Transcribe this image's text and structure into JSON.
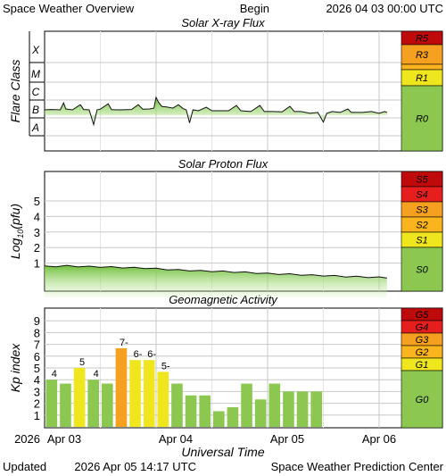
{
  "header": {
    "title": "Space Weather Overview",
    "begin_label": "Begin",
    "begin_value": "2026 04 03 00:00 UTC"
  },
  "footer": {
    "updated_label": "Updated",
    "updated_value": "2026 Apr 05 14:17 UTC",
    "credit": "Space Weather Prediction Center"
  },
  "colors": {
    "green": "#8cc850",
    "yellow": "#f0e61e",
    "orange": "#f5a01e",
    "light_orange": "#fab41e",
    "red": "#e61e1e",
    "dark_red": "#be0a0a",
    "grid": "#c8c8c8"
  },
  "chart_data": [
    {
      "type": "area",
      "title": "Solar X-ray Flux",
      "ylabel": "Flare Class",
      "yscale": "log",
      "y_ticks": [
        "A",
        "B",
        "C",
        "M",
        "X"
      ],
      "scale_labels": [
        "R5",
        "R3",
        "R1",
        "R0"
      ],
      "x_ticks": [
        "Apr 03",
        "Apr 04",
        "Apr 05",
        "Apr 06"
      ],
      "x_range_days": [
        0,
        3.2
      ],
      "grid": true,
      "series": [
        {
          "values": [
            [
              0.0,
              -6.0
            ],
            [
              0.05,
              -5.98
            ],
            [
              0.1,
              -5.99
            ],
            [
              0.14,
              -6.0
            ],
            [
              0.17,
              -5.6
            ],
            [
              0.19,
              -5.95
            ],
            [
              0.25,
              -6.0
            ],
            [
              0.32,
              -5.7
            ],
            [
              0.35,
              -5.98
            ],
            [
              0.4,
              -6.0
            ],
            [
              0.44,
              -6.85
            ],
            [
              0.47,
              -6.0
            ],
            [
              0.5,
              -5.96
            ],
            [
              0.57,
              -5.65
            ],
            [
              0.6,
              -5.99
            ],
            [
              0.68,
              -6.0
            ],
            [
              0.78,
              -5.98
            ],
            [
              0.84,
              -5.7
            ],
            [
              0.88,
              -5.96
            ],
            [
              0.94,
              -5.95
            ],
            [
              0.98,
              -5.9
            ],
            [
              1.0,
              -5.28
            ],
            [
              1.02,
              -5.55
            ],
            [
              1.05,
              -5.8
            ],
            [
              1.1,
              -5.84
            ],
            [
              1.15,
              -5.9
            ],
            [
              1.2,
              -5.7
            ],
            [
              1.24,
              -5.92
            ],
            [
              1.27,
              -6.0
            ],
            [
              1.3,
              -6.75
            ],
            [
              1.33,
              -6.0
            ],
            [
              1.38,
              -6.05
            ],
            [
              1.45,
              -5.85
            ],
            [
              1.5,
              -6.05
            ],
            [
              1.58,
              -6.05
            ],
            [
              1.65,
              -6.05
            ],
            [
              1.72,
              -5.75
            ],
            [
              1.76,
              -6.05
            ],
            [
              1.85,
              -6.1
            ],
            [
              1.93,
              -5.75
            ],
            [
              1.97,
              -6.1
            ],
            [
              2.05,
              -6.1
            ],
            [
              2.13,
              -6.12
            ],
            [
              2.2,
              -5.8
            ],
            [
              2.24,
              -6.1
            ],
            [
              2.3,
              -6.1
            ],
            [
              2.38,
              -6.2
            ],
            [
              2.45,
              -6.15
            ],
            [
              2.5,
              -6.7
            ],
            [
              2.53,
              -6.2
            ],
            [
              2.58,
              -6.1
            ],
            [
              2.65,
              -6.15
            ],
            [
              2.72,
              -5.95
            ],
            [
              2.75,
              -6.15
            ],
            [
              2.85,
              -6.15
            ],
            [
              2.93,
              -6.1
            ],
            [
              3.0,
              -6.2
            ],
            [
              3.05,
              -6.1
            ],
            [
              3.07,
              -6.15
            ]
          ]
        }
      ]
    },
    {
      "type": "area",
      "title": "Solar Proton Flux",
      "ylabel": "Log10(pfu)",
      "ylabel_base": "Log",
      "ylabel_sub": "10",
      "ylabel_unit": "(pfu)",
      "y_ticks": [
        1,
        2,
        3,
        4,
        5
      ],
      "scale_labels": [
        "S5",
        "S4",
        "S3",
        "S2",
        "S1",
        "S0"
      ],
      "x_range_days": [
        0,
        3.2
      ],
      "grid": true,
      "series": [
        {
          "values": [
            [
              0.0,
              0.78
            ],
            [
              0.1,
              0.8
            ],
            [
              0.2,
              0.82
            ],
            [
              0.3,
              0.79
            ],
            [
              0.4,
              0.77
            ],
            [
              0.5,
              0.76
            ],
            [
              0.6,
              0.74
            ],
            [
              0.7,
              0.72
            ],
            [
              0.8,
              0.7
            ],
            [
              0.9,
              0.68
            ],
            [
              1.0,
              0.64
            ],
            [
              1.1,
              0.6
            ],
            [
              1.2,
              0.56
            ],
            [
              1.3,
              0.53
            ],
            [
              1.4,
              0.5
            ],
            [
              1.5,
              0.48
            ],
            [
              1.6,
              0.46
            ],
            [
              1.7,
              0.43
            ],
            [
              1.8,
              0.4
            ],
            [
              1.9,
              0.36
            ],
            [
              2.0,
              0.33
            ],
            [
              2.1,
              0.3
            ],
            [
              2.2,
              0.28
            ],
            [
              2.3,
              0.25
            ],
            [
              2.4,
              0.22
            ],
            [
              2.5,
              0.2
            ],
            [
              2.6,
              0.17
            ],
            [
              2.7,
              0.14
            ],
            [
              2.8,
              0.12
            ],
            [
              2.9,
              0.1
            ],
            [
              3.0,
              0.08
            ],
            [
              3.07,
              0.07
            ]
          ]
        }
      ]
    },
    {
      "type": "bar",
      "title": "Geomagnetic Activity",
      "ylabel": "Kp index",
      "xlabel": "Universal Time",
      "x_start_label": "2026",
      "y_ticks": [
        1,
        2,
        3,
        4,
        5,
        6,
        7,
        8,
        9
      ],
      "ylim": [
        0,
        10
      ],
      "scale_labels": [
        "G5",
        "G4",
        "G3",
        "G2",
        "G1",
        "G0"
      ],
      "x_ticks": [
        "Apr 03",
        "Apr 04",
        "Apr 05",
        "Apr 06"
      ],
      "bar_interval_hours": 3,
      "values": [
        4.0,
        3.67,
        5.0,
        4.0,
        3.67,
        6.67,
        5.67,
        5.67,
        4.67,
        3.67,
        2.67,
        2.67,
        1.33,
        1.67,
        3.67,
        2.33,
        3.67,
        3.0,
        3.0,
        3.0
      ],
      "value_labels": [
        "4",
        "",
        "5",
        "4",
        "",
        "7-",
        "6-",
        "6-",
        "5-",
        "",
        "",
        "",
        "",
        "",
        "",
        "",
        "",
        "",
        "",
        ""
      ]
    }
  ]
}
